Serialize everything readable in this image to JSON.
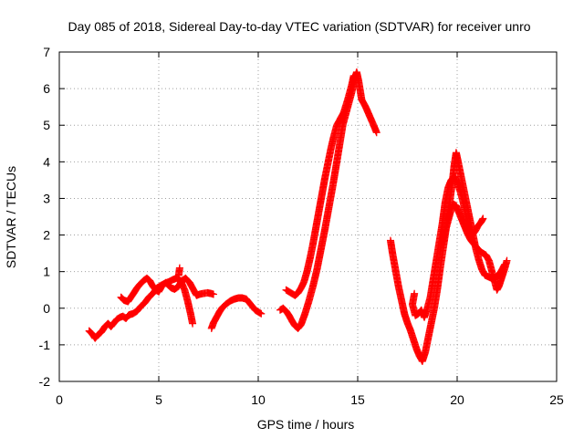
{
  "chart_data": {
    "type": "scatter",
    "title": "Day 085 of 2018, Sidereal Day-to-day VTEC variation (SDTVAR) for receiver unro",
    "xlabel": "GPS time / hours",
    "ylabel": "SDTVAR / TECUs",
    "xlim": [
      0,
      25
    ],
    "ylim": [
      -2,
      7
    ],
    "xticks": [
      0,
      5,
      10,
      15,
      20,
      25
    ],
    "yticks": [
      -2,
      -1,
      0,
      1,
      2,
      3,
      4,
      5,
      6,
      7
    ],
    "grid": true,
    "marker": "+",
    "series": [
      {
        "name": "SDTVAR",
        "color": "#ff0000",
        "segments": [
          [
            [
              1.5,
              -0.62
            ],
            [
              1.65,
              -0.7
            ],
            [
              1.8,
              -0.82
            ],
            [
              1.95,
              -0.72
            ],
            [
              2.1,
              -0.66
            ],
            [
              2.3,
              -0.5
            ],
            [
              2.45,
              -0.42
            ],
            [
              2.6,
              -0.5
            ],
            [
              2.75,
              -0.4
            ],
            [
              2.9,
              -0.3
            ],
            [
              3.05,
              -0.25
            ],
            [
              3.2,
              -0.22
            ],
            [
              3.35,
              -0.28
            ],
            [
              3.5,
              -0.18
            ],
            [
              3.7,
              -0.15
            ],
            [
              3.9,
              -0.08
            ],
            [
              4.1,
              0.05
            ],
            [
              4.3,
              0.15
            ],
            [
              4.5,
              0.3
            ],
            [
              4.7,
              0.4
            ],
            [
              4.9,
              0.55
            ],
            [
              5.1,
              0.62
            ],
            [
              5.3,
              0.68
            ],
            [
              5.5,
              0.72
            ],
            [
              5.7,
              0.78
            ],
            [
              5.9,
              0.82
            ],
            [
              6.1,
              0.75
            ],
            [
              6.3,
              0.5
            ],
            [
              6.45,
              0.2
            ],
            [
              6.6,
              -0.15
            ],
            [
              6.7,
              -0.42
            ]
          ],
          [
            [
              3.1,
              0.3
            ],
            [
              3.25,
              0.22
            ],
            [
              3.45,
              0.18
            ],
            [
              3.6,
              0.3
            ],
            [
              3.75,
              0.42
            ],
            [
              3.9,
              0.55
            ],
            [
              4.05,
              0.65
            ],
            [
              4.25,
              0.76
            ],
            [
              4.4,
              0.82
            ],
            [
              4.55,
              0.75
            ],
            [
              4.7,
              0.6
            ],
            [
              4.85,
              0.5
            ],
            [
              5.0,
              0.45
            ],
            [
              5.15,
              0.6
            ],
            [
              5.35,
              0.7
            ],
            [
              5.5,
              0.62
            ],
            [
              5.65,
              0.55
            ],
            [
              5.8,
              0.52
            ],
            [
              6.0,
              0.6
            ],
            [
              6.15,
              0.75
            ],
            [
              6.35,
              0.82
            ],
            [
              6.55,
              0.7
            ],
            [
              6.75,
              0.5
            ],
            [
              6.9,
              0.35
            ],
            [
              7.05,
              0.38
            ],
            [
              7.2,
              0.4
            ],
            [
              7.45,
              0.42
            ],
            [
              7.65,
              0.4
            ],
            [
              7.75,
              0.38
            ]
          ],
          [
            [
              6.0,
              0.9
            ],
            [
              6.05,
              1.1
            ]
          ],
          [
            [
              7.65,
              -0.55
            ],
            [
              7.75,
              -0.4
            ],
            [
              7.9,
              -0.25
            ],
            [
              8.05,
              -0.1
            ],
            [
              8.2,
              0.02
            ],
            [
              8.4,
              0.12
            ],
            [
              8.6,
              0.2
            ],
            [
              8.8,
              0.25
            ],
            [
              9.0,
              0.28
            ],
            [
              9.2,
              0.28
            ],
            [
              9.4,
              0.25
            ],
            [
              9.55,
              0.15
            ],
            [
              9.7,
              0.05
            ],
            [
              9.85,
              -0.05
            ],
            [
              10.0,
              -0.1
            ],
            [
              10.15,
              -0.15
            ]
          ],
          [
            [
              11.1,
              -0.05
            ],
            [
              11.25,
              0.0
            ],
            [
              11.4,
              -0.08
            ],
            [
              11.55,
              -0.2
            ],
            [
              11.7,
              -0.35
            ],
            [
              11.85,
              -0.48
            ],
            [
              12.0,
              -0.55
            ],
            [
              12.15,
              -0.45
            ],
            [
              12.35,
              -0.15
            ],
            [
              12.55,
              0.2
            ],
            [
              12.75,
              0.6
            ],
            [
              12.95,
              1.05
            ],
            [
              13.15,
              1.6
            ],
            [
              13.35,
              2.15
            ],
            [
              13.55,
              2.75
            ],
            [
              13.75,
              3.35
            ],
            [
              13.95,
              4.0
            ],
            [
              14.1,
              4.5
            ],
            [
              14.25,
              5.0
            ],
            [
              14.4,
              5.3
            ],
            [
              14.55,
              5.6
            ],
            [
              14.7,
              5.9
            ],
            [
              14.85,
              6.3
            ],
            [
              14.95,
              6.45
            ],
            [
              15.05,
              6.2
            ],
            [
              15.2,
              5.7
            ],
            [
              15.4,
              5.5
            ],
            [
              15.6,
              5.25
            ],
            [
              15.8,
              5.0
            ],
            [
              15.95,
              4.8
            ]
          ],
          [
            [
              11.4,
              0.5
            ],
            [
              11.55,
              0.45
            ],
            [
              11.7,
              0.4
            ],
            [
              11.85,
              0.35
            ],
            [
              12.0,
              0.42
            ],
            [
              12.15,
              0.55
            ],
            [
              12.3,
              0.72
            ],
            [
              12.45,
              1.0
            ],
            [
              12.6,
              1.35
            ],
            [
              12.75,
              1.75
            ],
            [
              12.9,
              2.2
            ],
            [
              13.05,
              2.65
            ],
            [
              13.2,
              3.1
            ],
            [
              13.35,
              3.55
            ],
            [
              13.5,
              3.95
            ],
            [
              13.65,
              4.35
            ],
            [
              13.8,
              4.7
            ],
            [
              13.95,
              5.0
            ],
            [
              14.1,
              5.15
            ],
            [
              14.3,
              5.35
            ],
            [
              14.5,
              5.7
            ],
            [
              14.7,
              6.1
            ],
            [
              14.8,
              6.35
            ]
          ],
          [
            [
              16.65,
              1.85
            ],
            [
              16.75,
              1.5
            ],
            [
              16.85,
              1.2
            ],
            [
              16.95,
              0.9
            ],
            [
              17.05,
              0.6
            ],
            [
              17.15,
              0.35
            ],
            [
              17.25,
              0.1
            ],
            [
              17.35,
              -0.15
            ],
            [
              17.5,
              -0.4
            ],
            [
              17.65,
              -0.6
            ],
            [
              17.8,
              -0.85
            ],
            [
              17.95,
              -1.1
            ],
            [
              18.1,
              -1.3
            ],
            [
              18.25,
              -1.45
            ],
            [
              18.4,
              -1.2
            ],
            [
              18.55,
              -0.8
            ],
            [
              18.7,
              -0.4
            ],
            [
              18.85,
              0.0
            ],
            [
              19.0,
              0.5
            ],
            [
              19.15,
              1.1
            ],
            [
              19.3,
              1.65
            ],
            [
              19.45,
              2.2
            ],
            [
              19.6,
              2.8
            ],
            [
              19.75,
              3.4
            ],
            [
              19.85,
              3.9
            ],
            [
              19.95,
              4.25
            ],
            [
              20.05,
              4.0
            ],
            [
              20.2,
              3.6
            ],
            [
              20.35,
              3.2
            ],
            [
              20.5,
              2.8
            ],
            [
              20.65,
              2.4
            ],
            [
              20.8,
              2.0
            ],
            [
              20.95,
              1.6
            ],
            [
              21.1,
              1.3
            ],
            [
              21.25,
              1.05
            ],
            [
              21.4,
              0.9
            ],
            [
              21.6,
              0.85
            ],
            [
              21.8,
              0.8
            ],
            [
              22.0,
              0.85
            ],
            [
              22.2,
              1.0
            ],
            [
              22.4,
              1.2
            ]
          ],
          [
            [
              17.85,
              0.4
            ],
            [
              17.75,
              0.1
            ],
            [
              17.9,
              -0.2
            ],
            [
              18.05,
              -0.15
            ],
            [
              18.2,
              -0.05
            ],
            [
              18.35,
              -0.25
            ],
            [
              18.5,
              0.0
            ],
            [
              18.65,
              0.3
            ],
            [
              18.8,
              0.8
            ],
            [
              18.95,
              1.3
            ],
            [
              19.1,
              1.8
            ],
            [
              19.25,
              2.3
            ],
            [
              19.4,
              2.9
            ],
            [
              19.55,
              3.3
            ],
            [
              19.7,
              3.5
            ],
            [
              19.85,
              3.6
            ],
            [
              20.0,
              3.45
            ],
            [
              20.15,
              3.2
            ],
            [
              20.3,
              2.9
            ],
            [
              20.45,
              2.5
            ],
            [
              20.6,
              2.15
            ],
            [
              20.75,
              2.0
            ],
            [
              20.9,
              2.1
            ],
            [
              21.05,
              2.25
            ],
            [
              21.2,
              2.35
            ],
            [
              21.3,
              2.45
            ]
          ],
          [
            [
              19.2,
              1.75
            ],
            [
              19.35,
              2.0
            ],
            [
              19.5,
              2.3
            ],
            [
              19.65,
              2.6
            ],
            [
              19.8,
              2.85
            ],
            [
              19.95,
              2.8
            ],
            [
              20.1,
              2.6
            ],
            [
              20.25,
              2.4
            ],
            [
              20.4,
              2.2
            ],
            [
              20.55,
              2.0
            ],
            [
              20.7,
              1.85
            ],
            [
              20.85,
              1.75
            ],
            [
              21.0,
              1.65
            ],
            [
              21.15,
              1.55
            ],
            [
              21.3,
              1.5
            ],
            [
              21.45,
              1.45
            ],
            [
              21.6,
              1.3
            ],
            [
              21.75,
              1.0
            ],
            [
              21.9,
              0.7
            ],
            [
              22.0,
              0.5
            ],
            [
              22.1,
              0.6
            ],
            [
              22.25,
              0.85
            ],
            [
              22.4,
              1.1
            ],
            [
              22.5,
              1.3
            ]
          ]
        ]
      }
    ]
  }
}
